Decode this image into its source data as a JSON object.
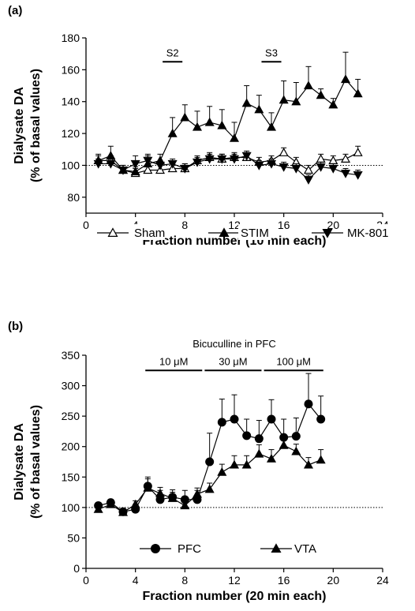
{
  "chart_data": [
    {
      "type": "line",
      "panel_label": "(a)",
      "xlabel": "Fraction number (10 min each)",
      "ylabel_line1": "Dialysate DA",
      "ylabel_line2": "(% of basal values)",
      "xlim": [
        0,
        24
      ],
      "ylim": [
        70,
        180
      ],
      "xticks": [
        0,
        4,
        8,
        12,
        16,
        20,
        24
      ],
      "yticks": [
        80,
        100,
        120,
        140,
        160,
        180
      ],
      "baseline": 100,
      "grid": false,
      "legend_position": "bottom",
      "annotations": [
        {
          "label": "S2",
          "x_start": 6.2,
          "x_end": 7.8,
          "y": 165
        },
        {
          "label": "S3",
          "x_start": 14.2,
          "x_end": 15.8,
          "y": 165
        }
      ],
      "series": [
        {
          "name": "Sham",
          "marker": "triangle-up-open",
          "x": [
            1,
            2,
            3,
            4,
            5,
            6,
            7,
            8,
            9,
            10,
            11,
            12,
            13,
            14,
            15,
            16,
            17,
            18,
            19,
            20,
            21,
            22
          ],
          "y": [
            103,
            103,
            97,
            95,
            97,
            97,
            98,
            98,
            103,
            105,
            104,
            105,
            105,
            102,
            103,
            108,
            102,
            97,
            104,
            103,
            104,
            108
          ],
          "err": [
            3,
            3,
            3,
            3,
            3,
            3,
            3,
            3,
            3,
            3,
            3,
            3,
            3,
            3,
            3,
            3,
            3,
            3,
            3,
            3,
            3,
            4
          ]
        },
        {
          "name": "STIM",
          "marker": "triangle-up-filled",
          "x": [
            1,
            2,
            3,
            4,
            5,
            6,
            7,
            8,
            9,
            10,
            11,
            12,
            13,
            14,
            15,
            16,
            17,
            18,
            19,
            20,
            21,
            22
          ],
          "y": [
            103,
            106,
            97,
            96,
            101,
            103,
            120,
            130,
            124,
            127,
            125,
            117,
            139,
            135,
            124,
            141,
            140,
            150,
            144,
            138,
            154,
            145
          ],
          "err": [
            4,
            6,
            3,
            3,
            6,
            4,
            10,
            8,
            10,
            10,
            10,
            10,
            11,
            9,
            9,
            12,
            12,
            12,
            4,
            4,
            17,
            9
          ]
        },
        {
          "name": "MK-801",
          "marker": "triangle-down-filled",
          "x": [
            1,
            2,
            3,
            4,
            5,
            6,
            7,
            8,
            9,
            10,
            11,
            12,
            13,
            14,
            15,
            16,
            17,
            18,
            19,
            20,
            21,
            22
          ],
          "y": [
            101,
            101,
            97,
            101,
            103,
            100,
            101,
            98,
            102,
            104,
            104,
            104,
            106,
            100,
            101,
            99,
            98,
            91,
            99,
            98,
            95,
            94
          ],
          "err": [
            3,
            3,
            3,
            5,
            3,
            3,
            3,
            3,
            3,
            3,
            3,
            3,
            3,
            3,
            3,
            3,
            3,
            3,
            3,
            3,
            3,
            3
          ]
        }
      ]
    },
    {
      "type": "line",
      "panel_label": "(b)",
      "xlabel": "Fraction number (20 min each)",
      "ylabel_line1": "Dialysate DA",
      "ylabel_line2": "(% of basal values)",
      "xlim": [
        0,
        24
      ],
      "ylim": [
        0,
        350
      ],
      "xticks": [
        0,
        4,
        8,
        12,
        16,
        20,
        24
      ],
      "yticks": [
        0,
        50,
        100,
        150,
        200,
        250,
        300,
        350
      ],
      "baseline": 100,
      "grid": false,
      "legend_position": "bottom",
      "group_title": "Bicuculline in PFC",
      "annotations": [
        {
          "label": "10 μM",
          "x_start": 4.8,
          "x_end": 9.4,
          "y": 325
        },
        {
          "label": "30 μM",
          "x_start": 9.6,
          "x_end": 14.2,
          "y": 325
        },
        {
          "label": "100 μM",
          "x_start": 14.4,
          "x_end": 19.2,
          "y": 325
        }
      ],
      "series": [
        {
          "name": "PFC",
          "marker": "circle-filled",
          "x": [
            1,
            2,
            3,
            4,
            5,
            6,
            7,
            8,
            9,
            10,
            11,
            12,
            13,
            14,
            15,
            16,
            17,
            18,
            19
          ],
          "y": [
            103,
            108,
            93,
            97,
            135,
            113,
            117,
            113,
            113,
            175,
            240,
            245,
            218,
            213,
            245,
            215,
            217,
            270,
            245
          ],
          "err": [
            5,
            5,
            5,
            8,
            15,
            15,
            12,
            15,
            15,
            47,
            38,
            40,
            27,
            30,
            32,
            30,
            30,
            50,
            38
          ]
        },
        {
          "name": "VTA",
          "marker": "triangle-up-filled",
          "x": [
            1,
            2,
            3,
            4,
            5,
            6,
            7,
            8,
            9,
            10,
            11,
            12,
            13,
            14,
            15,
            16,
            17,
            18,
            19
          ],
          "y": [
            97,
            105,
            92,
            105,
            132,
            123,
            115,
            103,
            122,
            130,
            158,
            170,
            170,
            188,
            180,
            202,
            192,
            170,
            178
          ],
          "err": [
            5,
            5,
            5,
            6,
            15,
            10,
            10,
            10,
            10,
            10,
            13,
            15,
            15,
            15,
            15,
            15,
            12,
            12,
            17
          ]
        }
      ]
    }
  ]
}
